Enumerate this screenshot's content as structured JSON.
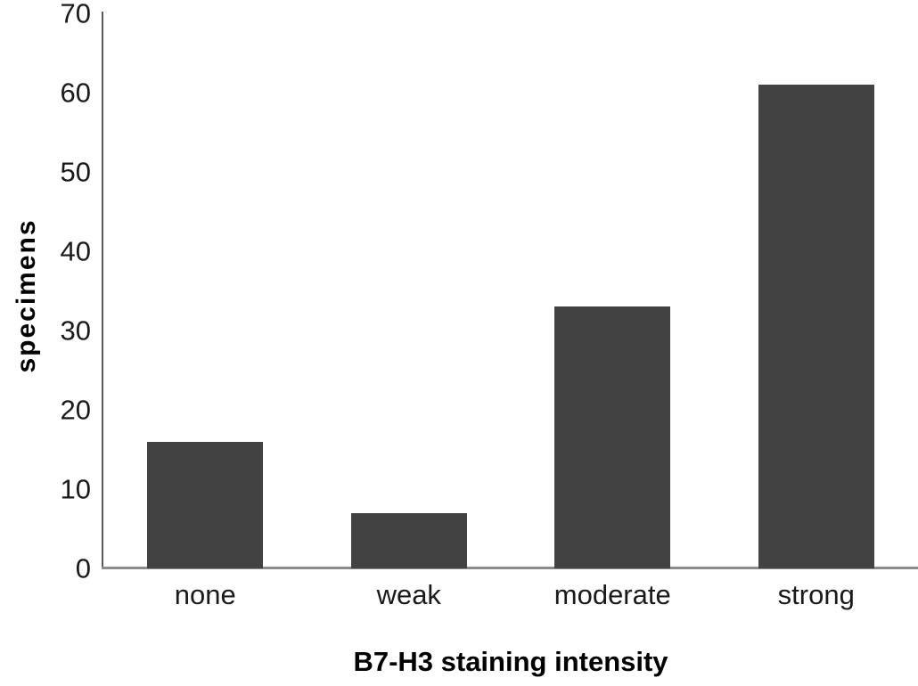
{
  "chart_data": {
    "type": "bar",
    "title": "",
    "categories": [
      "none",
      "weak",
      "moderate",
      "strong"
    ],
    "values": [
      16,
      7,
      33,
      61
    ],
    "xlabel": "B7-H3 staining intensity",
    "ylabel": "specimens",
    "ylim": [
      0,
      70
    ],
    "yticks": [
      0,
      10,
      20,
      30,
      40,
      50,
      60,
      70
    ],
    "grid": false,
    "legend": "none",
    "bar_color": "#424242",
    "y_axis_line_color": "#595959",
    "baseline_color": "#8c8c8c",
    "text_color": "#1a1a1a"
  }
}
